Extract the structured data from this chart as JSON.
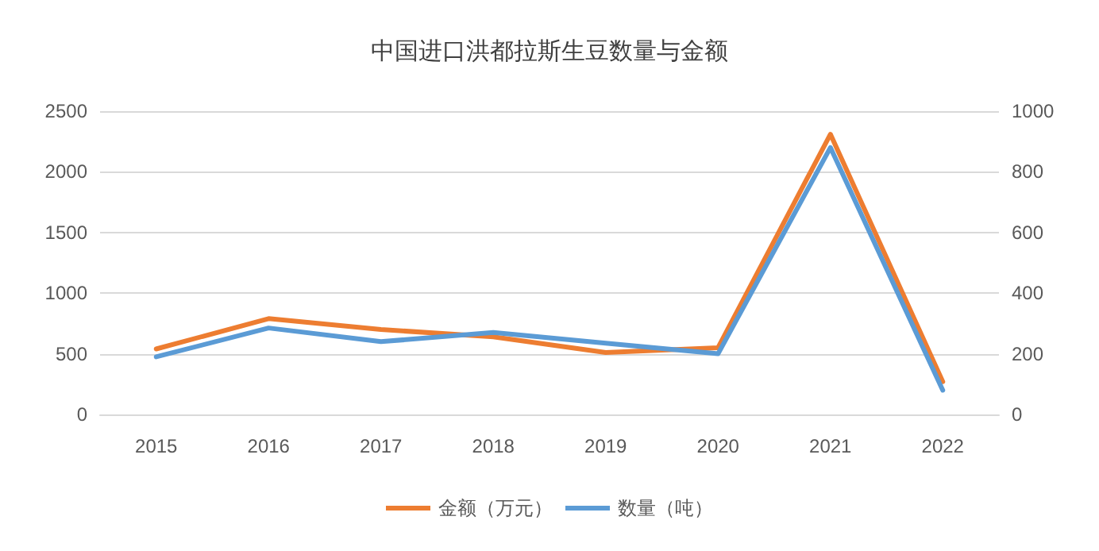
{
  "chart_data": {
    "type": "line",
    "title": "中国进口洪都拉斯生豆数量与金额",
    "categories": [
      "2015",
      "2016",
      "2017",
      "2018",
      "2019",
      "2020",
      "2021",
      "2022"
    ],
    "series": [
      {
        "name": "金额（万元）",
        "color": "#ed7d31",
        "values": [
          540,
          790,
          700,
          640,
          510,
          550,
          2310,
          270
        ]
      },
      {
        "name": "数量（吨）",
        "color": "#5b9bd5",
        "axis": "y2",
        "values": [
          190,
          285,
          240,
          270,
          235,
          200,
          880,
          80
        ]
      }
    ],
    "ylim": [
      0,
      2500
    ],
    "yticks": [
      0,
      500,
      1000,
      1500,
      2000,
      2500
    ],
    "y2lim": [
      0,
      1000
    ],
    "y2ticks": [
      0,
      200,
      400,
      600,
      800,
      1000
    ],
    "grid": "y",
    "legend": "bottom",
    "marker": "none",
    "line_style": "solid"
  }
}
